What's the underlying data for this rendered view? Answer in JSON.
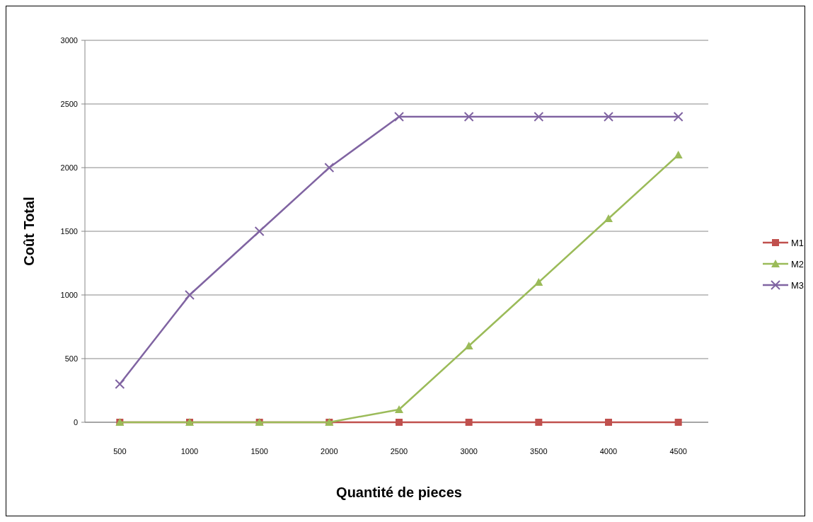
{
  "chart_data": {
    "type": "line",
    "xlabel": "Quantité de pieces",
    "ylabel": "Coût Total",
    "categories": [
      "500",
      "1000",
      "1500",
      "2000",
      "2500",
      "3000",
      "3500",
      "4000",
      "4500"
    ],
    "series": [
      {
        "name": "M1",
        "color": "#c0504d",
        "marker": "square",
        "values": [
          0,
          0,
          0,
          0,
          0,
          0,
          0,
          0,
          0
        ]
      },
      {
        "name": "M2",
        "color": "#9bbb59",
        "marker": "triangle",
        "values": [
          0,
          0,
          0,
          0,
          100,
          600,
          1100,
          1600,
          2100
        ]
      },
      {
        "name": "M3",
        "color": "#8064a2",
        "marker": "cross",
        "values": [
          300,
          1000,
          1500,
          2000,
          2400,
          2400,
          2400,
          2400,
          2400
        ]
      }
    ],
    "ylim": [
      0,
      3000
    ],
    "yticks": [
      0,
      500,
      1000,
      1500,
      2000,
      2500,
      3000
    ],
    "grid": "y",
    "legend": "right",
    "line_style": "solid"
  }
}
